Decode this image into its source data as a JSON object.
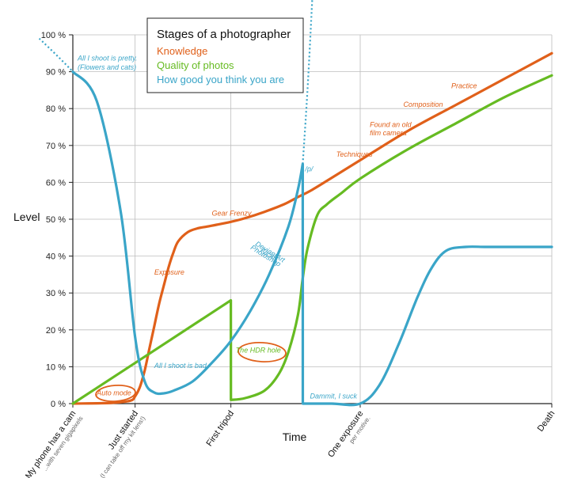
{
  "chart_data": {
    "type": "line",
    "title": "Stages of a photographer",
    "xlabel": "Time",
    "ylabel": "Level",
    "ylim": [
      0,
      100
    ],
    "xlim": [
      0,
      100
    ],
    "y_ticks": [
      {
        "value": 0,
        "label": "0 %"
      },
      {
        "value": 10,
        "label": "10 %"
      },
      {
        "value": 20,
        "label": "20 %"
      },
      {
        "value": 30,
        "label": "30 %"
      },
      {
        "value": 40,
        "label": "40 %"
      },
      {
        "value": 50,
        "label": "50 %"
      },
      {
        "value": 60,
        "label": "60 %"
      },
      {
        "value": 70,
        "label": "70 %"
      },
      {
        "value": 80,
        "label": "80 %"
      },
      {
        "value": 90,
        "label": "90 %"
      },
      {
        "value": 100,
        "label": "100 %"
      }
    ],
    "x_ticks": [
      {
        "value": 0,
        "label": "My phone has a cam",
        "sub": "...with seven gigapixels"
      },
      {
        "value": 13,
        "label": "Just started",
        "sub": "(I can take off my kit lens!)"
      },
      {
        "value": 33,
        "label": "First tripod",
        "sub": ""
      },
      {
        "value": 60,
        "label": "One exposure",
        "sub": "per motive."
      },
      {
        "value": 100,
        "label": "Death",
        "sub": ""
      }
    ],
    "legend_position": "top-center",
    "series": [
      {
        "name": "Knowledge",
        "color": "#e0601a",
        "x": [
          0,
          8,
          12,
          13,
          14,
          15,
          16,
          17,
          18,
          19,
          20,
          21,
          22,
          24,
          26,
          28,
          30,
          33,
          36,
          40,
          44,
          47,
          50,
          55,
          60,
          70,
          80,
          90,
          100
        ],
        "y": [
          0,
          0.2,
          0.8,
          2,
          4.5,
          9,
          15,
          21,
          27,
          32,
          37,
          41,
          44,
          46.5,
          47.5,
          48,
          48.5,
          49.3,
          50.3,
          52,
          54,
          56,
          58,
          62,
          66,
          74,
          81,
          88,
          95
        ]
      },
      {
        "name": "Quality of photos",
        "color": "#66bb22",
        "x": [
          0,
          33,
          33.01,
          36,
          40,
          43,
          45,
          47,
          48,
          49,
          51,
          53,
          56,
          60,
          70,
          80,
          90,
          100
        ],
        "y": [
          0,
          28,
          1,
          1.5,
          3.5,
          8,
          14,
          24,
          34,
          42,
          51,
          54,
          57,
          61,
          69,
          76,
          83,
          89
        ]
      },
      {
        "name": "How good you think you are",
        "color": "#3aa5c8",
        "x": [
          0,
          5,
          10,
          13,
          15,
          17,
          19,
          21,
          25,
          29,
          33,
          37,
          41,
          45,
          47,
          48,
          48.01,
          54,
          60,
          64,
          68,
          72,
          75,
          78,
          82,
          86,
          90,
          100
        ],
        "y": [
          90,
          82,
          52,
          18,
          6,
          3,
          2.8,
          3.5,
          6,
          11,
          17,
          25,
          35,
          48,
          58,
          65,
          0,
          0,
          0,
          5,
          16,
          29,
          37,
          41.5,
          42.5,
          42.5,
          42.5,
          42.5
        ]
      }
    ],
    "extrapolations": [
      {
        "series": "How good you think you are",
        "x": [
          -7,
          -3,
          0
        ],
        "y": [
          99,
          94,
          90
        ]
      },
      {
        "series": "How good you think you are",
        "x": [
          48,
          49,
          50
        ],
        "y": [
          65,
          85,
          110
        ]
      }
    ],
    "annotations": [
      {
        "text": "All I shoot is pretty.",
        "x": 1,
        "y": 93,
        "color": "#3aa5c8"
      },
      {
        "text": "(Flowers and cats)",
        "x": 1,
        "y": 90.6,
        "color": "#3aa5c8"
      },
      {
        "text": "Auto mode",
        "x": 5,
        "y": 2.2,
        "color": "#e0601a"
      },
      {
        "text": "Exposure",
        "x": 17,
        "y": 35,
        "color": "#e0601a"
      },
      {
        "text": "Gear Frenzy",
        "x": 29,
        "y": 51,
        "color": "#e0601a"
      },
      {
        "text": "DeviantArt",
        "x": 38,
        "y": 43,
        "color": "#3aa5c8"
      },
      {
        "text": "Flickr",
        "x": 39,
        "y": 41.2,
        "color": "#3aa5c8"
      },
      {
        "text": "Photoshop",
        "x": 37,
        "y": 42,
        "color": "#3aa5c8"
      },
      {
        "text": "All I shoot is bad.",
        "x": 17,
        "y": 9.7,
        "color": "#3aa5c8"
      },
      {
        "text": "The HDR hole",
        "x": 34,
        "y": 13.8,
        "color": "#66bb22"
      },
      {
        "text": "/p/",
        "x": 48.5,
        "y": 63,
        "color": "#3aa5c8"
      },
      {
        "text": "Dammit, I suck",
        "x": 49.5,
        "y": 1.4,
        "color": "#3aa5c8"
      },
      {
        "text": "Techniques",
        "x": 55,
        "y": 67,
        "color": "#e0601a"
      },
      {
        "text": "Found an old",
        "x": 62,
        "y": 75,
        "color": "#e0601a"
      },
      {
        "text": "film camera",
        "x": 62,
        "y": 72.8,
        "color": "#e0601a"
      },
      {
        "text": "Composition",
        "x": 69,
        "y": 80.5,
        "color": "#e0601a"
      },
      {
        "text": "Practice",
        "x": 79,
        "y": 85.5,
        "color": "#e0601a"
      }
    ]
  }
}
